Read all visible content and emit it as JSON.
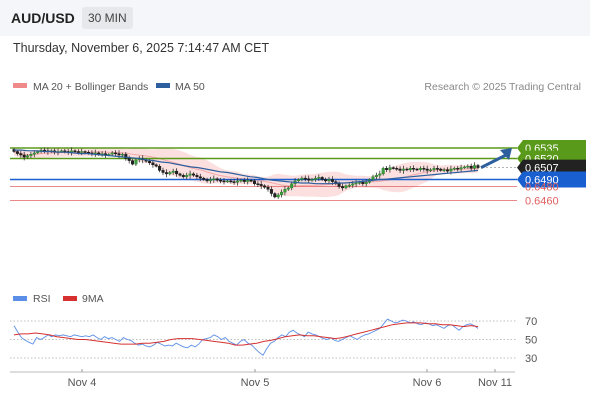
{
  "header": {
    "symbol": "AUD/USD",
    "timeframe": "30 MIN",
    "datetime": "Thursday, November 6, 2025 7:14:47 AM CET"
  },
  "legend": {
    "items": [
      {
        "label": "MA 20 + Bollinger Bands",
        "color": "#f08a8a"
      },
      {
        "label": "MA 50",
        "color": "#2d5f9e"
      }
    ],
    "credit": "Research © 2025 Trading Central"
  },
  "rsi_legend": {
    "items": [
      {
        "label": "RSI",
        "color": "#5b8ee6"
      },
      {
        "label": "9MA",
        "color": "#d63030"
      }
    ]
  },
  "colors": {
    "resistance": "#5a9a1a",
    "pivot": "#1a5fd0",
    "support": "#e06060",
    "last": "#222222",
    "arrow": "#2d5f9e"
  },
  "chart_data": [
    {
      "type": "candlestick",
      "x_ticks": [
        "Nov 4",
        "Nov 5",
        "Nov 6",
        "Nov 11"
      ],
      "price_levels": [
        {
          "label": "0.6535",
          "value": 0.6535,
          "kind": "resistance"
        },
        {
          "label": "0.6520",
          "value": 0.652,
          "kind": "resistance"
        },
        {
          "label": "0.6507",
          "value": 0.6507,
          "kind": "last"
        },
        {
          "label": "0.6490",
          "value": 0.649,
          "kind": "pivot"
        },
        {
          "label": "0.6480",
          "value": 0.648,
          "kind": "support"
        },
        {
          "label": "0.6460",
          "value": 0.646,
          "kind": "support"
        }
      ],
      "close": [
        0.653,
        0.6527,
        0.6525,
        0.6522,
        0.6524,
        0.6526,
        0.6528,
        0.653,
        0.6532,
        0.6531,
        0.653,
        0.6531,
        0.6529,
        0.653,
        0.6531,
        0.653,
        0.6529,
        0.6531,
        0.653,
        0.6529,
        0.653,
        0.6529,
        0.6528,
        0.6527,
        0.6528,
        0.6526,
        0.6527,
        0.6525,
        0.6526,
        0.6528,
        0.6527,
        0.6525,
        0.6526,
        0.652,
        0.6517,
        0.6512,
        0.6518,
        0.652,
        0.6518,
        0.6516,
        0.6514,
        0.6511,
        0.6509,
        0.6503,
        0.65,
        0.6498,
        0.65,
        0.6502,
        0.6498,
        0.6496,
        0.6494,
        0.6496,
        0.6498,
        0.6496,
        0.6494,
        0.6492,
        0.649,
        0.6488,
        0.649,
        0.6491,
        0.6489,
        0.6488,
        0.6487,
        0.6488,
        0.6487,
        0.6486,
        0.6488,
        0.6489,
        0.6487,
        0.6489,
        0.6488,
        0.6484,
        0.6483,
        0.6481,
        0.6479,
        0.6476,
        0.647,
        0.6465,
        0.6468,
        0.6472,
        0.6476,
        0.6478,
        0.6484,
        0.6488,
        0.649,
        0.6492,
        0.6491,
        0.6489,
        0.649,
        0.6492,
        0.6493,
        0.649,
        0.6488,
        0.649,
        0.6487,
        0.6484,
        0.648,
        0.6478,
        0.6481,
        0.6482,
        0.6484,
        0.6485,
        0.6486,
        0.6484,
        0.6486,
        0.649,
        0.6494,
        0.6496,
        0.6498,
        0.6506,
        0.6504,
        0.6507,
        0.6506,
        0.6505,
        0.6503,
        0.6505,
        0.6504,
        0.6506,
        0.6505,
        0.6504,
        0.6506,
        0.6505,
        0.6503,
        0.6504,
        0.6506,
        0.6505,
        0.6503,
        0.6504,
        0.6502,
        0.6505,
        0.6506,
        0.6505,
        0.6507,
        0.6508,
        0.6509,
        0.6506,
        0.651,
        0.6507
      ],
      "ma50": [
        0.6532,
        0.6532,
        0.6531,
        0.6531,
        0.653,
        0.653,
        0.6529,
        0.6529,
        0.6528,
        0.6527,
        0.6527,
        0.6526,
        0.6525,
        0.6524,
        0.6523,
        0.6522,
        0.6521,
        0.652,
        0.6518,
        0.6517,
        0.6515,
        0.6514,
        0.6512,
        0.651,
        0.6508,
        0.6507,
        0.6505,
        0.6503,
        0.6501,
        0.65,
        0.6498,
        0.6496,
        0.6494,
        0.6493,
        0.6491,
        0.6489,
        0.6488,
        0.6487,
        0.6486,
        0.6485,
        0.6485,
        0.6484,
        0.6484,
        0.6484,
        0.6485,
        0.6485,
        0.6486,
        0.6487,
        0.6488,
        0.6489,
        0.649,
        0.6491,
        0.6492,
        0.6493,
        0.6494,
        0.6495,
        0.6496,
        0.6497,
        0.6498,
        0.6499,
        0.65,
        0.6501,
        0.6502,
        0.6503
      ],
      "rsi": [
        65,
        58,
        52,
        49,
        47,
        45,
        52,
        50,
        52,
        55,
        53,
        55,
        54,
        55,
        54,
        53,
        55,
        54,
        53,
        54,
        53,
        55,
        52,
        50,
        53,
        51,
        52,
        50,
        48,
        52,
        50,
        49,
        46,
        44,
        45,
        43,
        42,
        44,
        47,
        45,
        43,
        44,
        43,
        46,
        44,
        42,
        41,
        44,
        42,
        45,
        50,
        51,
        52,
        55,
        53,
        50,
        52,
        48,
        46,
        44,
        48,
        50,
        46,
        44,
        40,
        36,
        33,
        40,
        46,
        48,
        52,
        55,
        53,
        58,
        60,
        57,
        55,
        53,
        58,
        56,
        55,
        53,
        51,
        50,
        52,
        49,
        48,
        50,
        52,
        54,
        52,
        50,
        53,
        55,
        56,
        58,
        60,
        62,
        67,
        72,
        70,
        68,
        69,
        71,
        70,
        68,
        69,
        67,
        66,
        68,
        67,
        65,
        66,
        64,
        62,
        65,
        66,
        63,
        60,
        64,
        66,
        67,
        65,
        62
      ],
      "rsi_ma": [
        55,
        56,
        56,
        57,
        56,
        55,
        53,
        52,
        51,
        50,
        50,
        49,
        48,
        47,
        46,
        45,
        45,
        45,
        46,
        46,
        47,
        48,
        50,
        51,
        51,
        51,
        50,
        49,
        48,
        47,
        46,
        44,
        44,
        45,
        46,
        48,
        49,
        51,
        53,
        54,
        55,
        54,
        54,
        53,
        52,
        51,
        52,
        54,
        56,
        58,
        60,
        62,
        64,
        66,
        67,
        68,
        68,
        68,
        67,
        67,
        66,
        66,
        65,
        64,
        65,
        64
      ]
    }
  ]
}
